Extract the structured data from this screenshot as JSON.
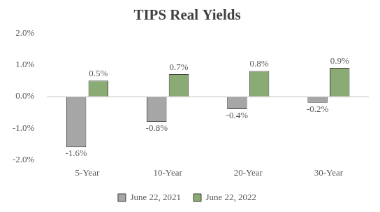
{
  "chart_data": {
    "type": "bar",
    "title": "TIPS Real Yields",
    "categories": [
      "5-Year",
      "10-Year",
      "20-Year",
      "30-Year"
    ],
    "series": [
      {
        "name": "June 22, 2021",
        "color": "#a6a6a6",
        "values": [
          -1.6,
          -0.8,
          -0.4,
          -0.2
        ],
        "value_labels": [
          "-1.6%",
          "-0.8%",
          "-0.4%",
          "-0.2%"
        ]
      },
      {
        "name": "June 22, 2022",
        "color": "#8aab74",
        "values": [
          0.5,
          0.7,
          0.8,
          0.9
        ],
        "value_labels": [
          "0.5%",
          "0.7%",
          "0.8%",
          "0.9%"
        ]
      }
    ],
    "ylim": [
      -2,
      2
    ],
    "yticks": [
      {
        "value": -2,
        "label": "-2.0%"
      },
      {
        "value": -1,
        "label": "-1.0%"
      },
      {
        "value": 0,
        "label": "0.0%"
      },
      {
        "value": 1,
        "label": "1.0%"
      },
      {
        "value": 2,
        "label": "2.0%"
      }
    ],
    "grid": false,
    "legend": "bottom",
    "data_labels": true
  }
}
